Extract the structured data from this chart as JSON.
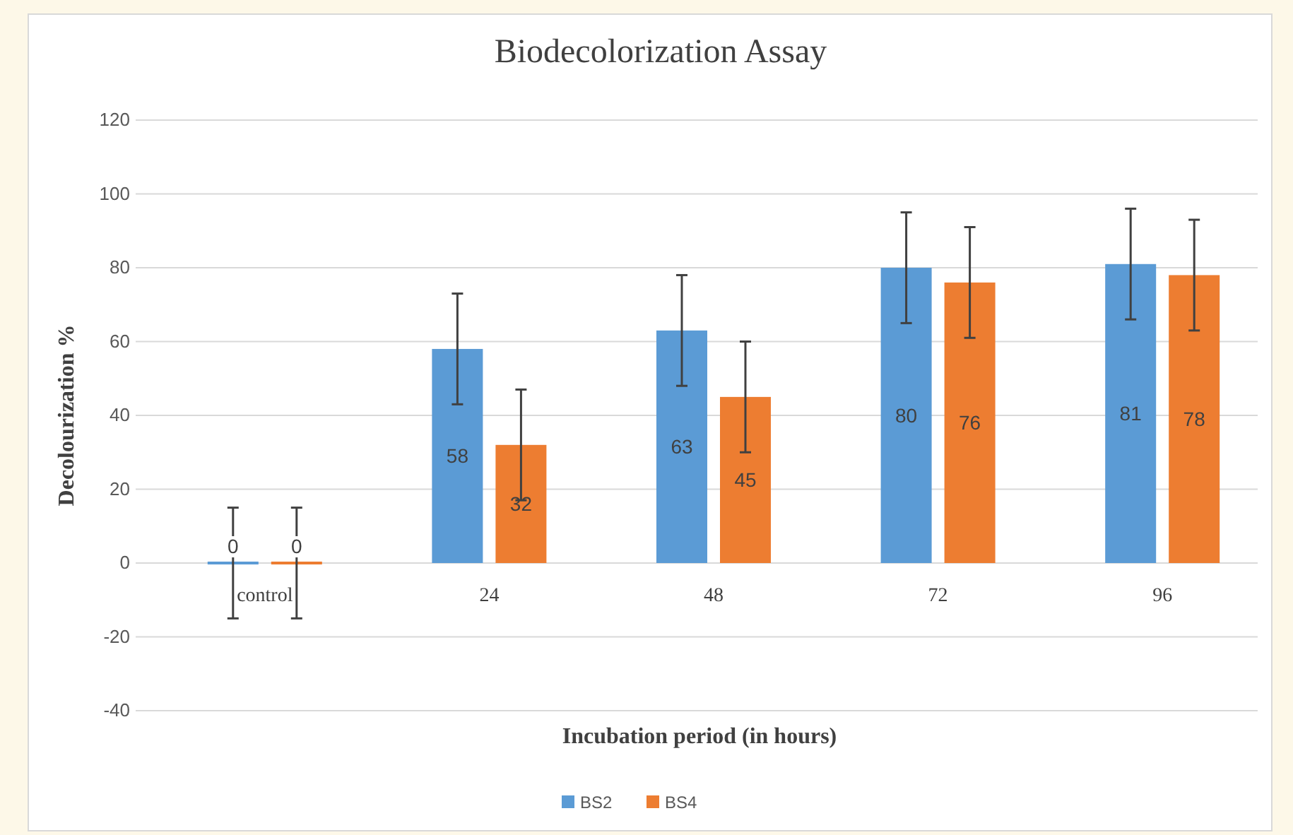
{
  "chart_data": {
    "type": "bar",
    "title": "Biodecolorization Assay",
    "xlabel": "Incubation period (in hours)",
    "ylabel": "Decolourization %",
    "categories": [
      "control",
      "24",
      "48",
      "72",
      "96"
    ],
    "series": [
      {
        "name": "BS2",
        "color": "#5b9bd5",
        "values": [
          0,
          58,
          63,
          80,
          81
        ],
        "errors": [
          15,
          15,
          15,
          15,
          15
        ]
      },
      {
        "name": "BS4",
        "color": "#ed7d31",
        "values": [
          0,
          32,
          45,
          76,
          78
        ],
        "errors": [
          15,
          15,
          15,
          15,
          15
        ]
      }
    ],
    "ylim": [
      -40,
      120
    ],
    "yticks": [
      -40,
      -20,
      0,
      20,
      40,
      60,
      80,
      100,
      120
    ],
    "grid": "y",
    "legend": "bottom",
    "data_labels": true
  }
}
